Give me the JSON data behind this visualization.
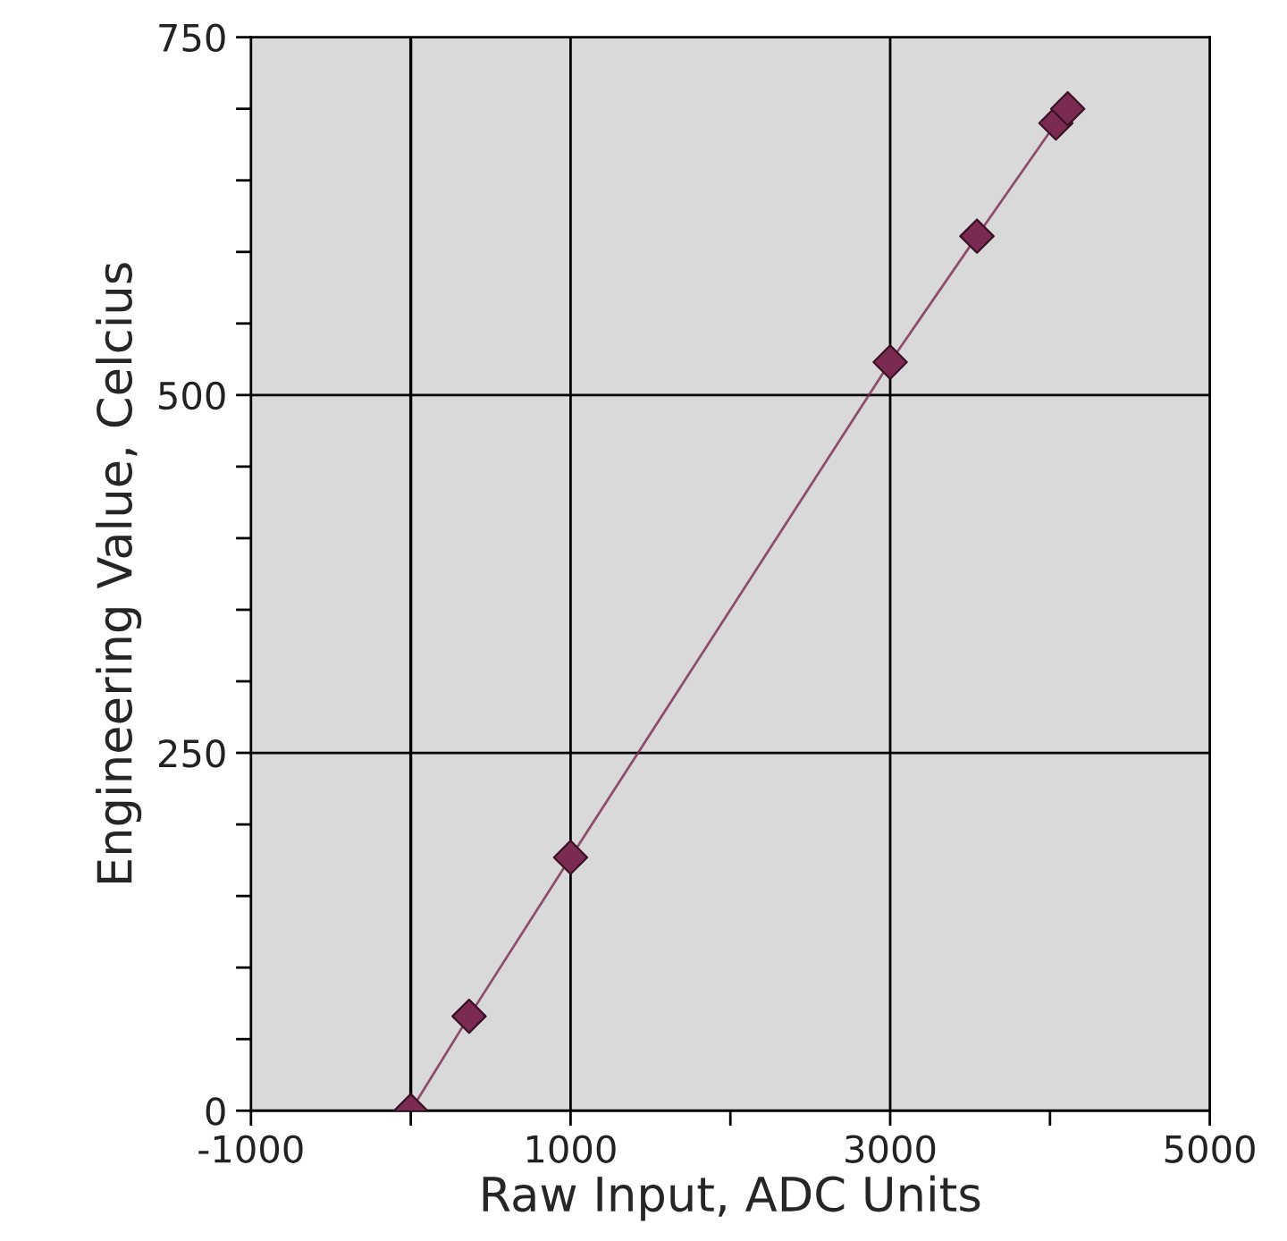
{
  "chart_data": {
    "type": "line",
    "xlabel": "Raw Input, ADC Units",
    "ylabel": "Engineering Value, Celcius",
    "x": [
      0,
      365,
      1000,
      3000,
      3543,
      4037,
      4111
    ],
    "series": [
      {
        "color": "#7b2a52",
        "values": [
          0,
          66,
          177,
          523,
          611,
          690,
          700
        ]
      }
    ],
    "marker": "diamond",
    "line_style": "solid",
    "grid": true,
    "xlim": [
      -1000,
      5000
    ],
    "xticks": [
      -1000,
      {
        "value": 0,
        "label": null
      },
      1000,
      {
        "value": 2000,
        "label": null
      },
      3000,
      {
        "value": 4000,
        "label": null
      },
      5000
    ],
    "ylim": [
      0,
      750
    ],
    "yticks": [
      0,
      {
        "value": 50,
        "label": null
      },
      {
        "value": 100,
        "label": null
      },
      {
        "value": 150,
        "label": null
      },
      {
        "value": 200,
        "label": null
      },
      250,
      {
        "value": 300,
        "label": null
      },
      {
        "value": 350,
        "label": null
      },
      {
        "value": 400,
        "label": null
      },
      {
        "value": 450,
        "label": null
      },
      500,
      {
        "value": 550,
        "label": null
      },
      {
        "value": 600,
        "label": null
      },
      {
        "value": 650,
        "label": null
      },
      {
        "value": 700,
        "label": null
      },
      750
    ],
    "ref_lines": [
      {
        "axis": "x",
        "value": 0,
        "color": "#000000",
        "line_style": "solid"
      }
    ]
  }
}
